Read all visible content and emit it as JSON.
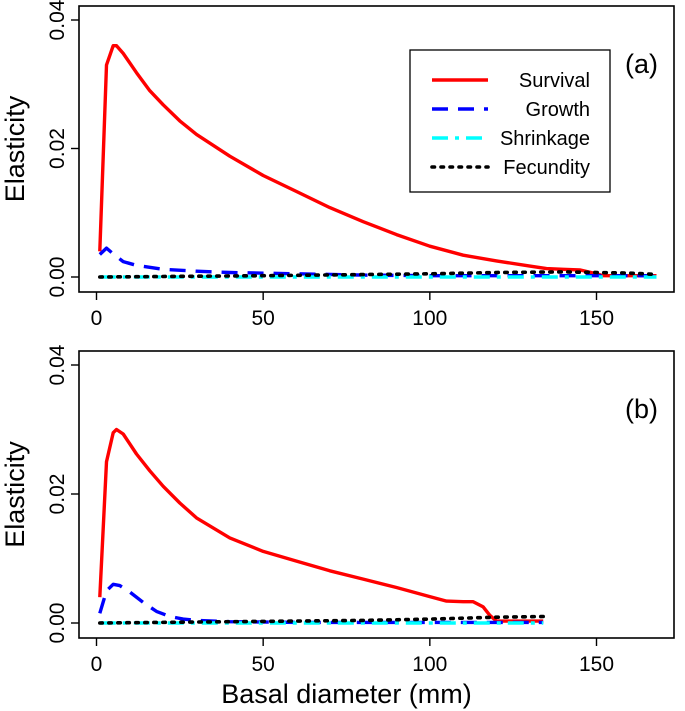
{
  "chart_data": [
    {
      "type": "line",
      "panel_label": "(a)",
      "ylabel": "Elasticity",
      "xlabel": "",
      "xlim": [
        0,
        168
      ],
      "ylim": [
        0,
        0.04
      ],
      "x_ticks": [
        0,
        50,
        100,
        150
      ],
      "x_tick_labels": [
        "0",
        "50",
        "100",
        "150"
      ],
      "y_ticks": [
        0,
        0.02,
        0.04
      ],
      "y_tick_labels": [
        "0.00",
        "0.02",
        "0.04"
      ],
      "legend": {
        "position": "top-right",
        "entries": [
          "Survival",
          "Growth",
          "Shrinkage",
          "Fecundity"
        ]
      },
      "series": [
        {
          "name": "Survival",
          "color": "#ff0000",
          "style": "solid",
          "x": [
            1,
            3,
            5,
            6,
            8,
            12,
            16,
            20,
            25,
            30,
            40,
            50,
            60,
            70,
            80,
            90,
            100,
            110,
            120,
            130,
            135,
            140,
            145,
            150,
            152,
            168
          ],
          "values": [
            0.004,
            0.033,
            0.036,
            0.036,
            0.0348,
            0.0318,
            0.029,
            0.0268,
            0.0243,
            0.0222,
            0.0188,
            0.0158,
            0.0133,
            0.0108,
            0.0086,
            0.0066,
            0.0048,
            0.0034,
            0.0025,
            0.0017,
            0.0013,
            0.0012,
            0.0011,
            0.0005,
            0.0002,
            0.0002
          ]
        },
        {
          "name": "Growth",
          "color": "#0000ff",
          "style": "dashed",
          "x": [
            1,
            3,
            5,
            8,
            12,
            20,
            30,
            40,
            60,
            80,
            100,
            120,
            140,
            168
          ],
          "values": [
            0.0035,
            0.0045,
            0.0036,
            0.0024,
            0.0018,
            0.0012,
            0.0009,
            0.0007,
            0.0005,
            0.0003,
            0.0002,
            0.0002,
            0.0002,
            0.0002
          ]
        },
        {
          "name": "Shrinkage",
          "color": "#00ffff",
          "style": "dashdot",
          "x": [
            1,
            40,
            80,
            120,
            168
          ],
          "values": [
            0.0,
            0.0,
            0.0,
            0.0,
            0.0
          ]
        },
        {
          "name": "Fecundity",
          "color": "#000000",
          "style": "dotted",
          "x": [
            1,
            50,
            100,
            120,
            140,
            160,
            168
          ],
          "values": [
            0.0,
            0.0002,
            0.0005,
            0.0007,
            0.0008,
            0.0006,
            0.0004
          ]
        }
      ]
    },
    {
      "type": "line",
      "panel_label": "(b)",
      "ylabel": "Elasticity",
      "xlabel": "Basal diameter (mm)",
      "xlim": [
        0,
        168
      ],
      "ylim": [
        0,
        0.04
      ],
      "x_ticks": [
        0,
        50,
        100,
        150
      ],
      "x_tick_labels": [
        "0",
        "50",
        "100",
        "150"
      ],
      "y_ticks": [
        0,
        0.02,
        0.04
      ],
      "y_tick_labels": [
        "0.00",
        "0.02",
        "0.04"
      ],
      "series": [
        {
          "name": "Survival",
          "color": "#ff0000",
          "style": "solid",
          "x": [
            1,
            3,
            5,
            6,
            8,
            12,
            16,
            20,
            25,
            30,
            40,
            50,
            60,
            70,
            80,
            90,
            100,
            105,
            110,
            113,
            116,
            118,
            120,
            124,
            128,
            134
          ],
          "values": [
            0.004,
            0.025,
            0.0295,
            0.03,
            0.0293,
            0.0262,
            0.0236,
            0.0212,
            0.0186,
            0.0163,
            0.0132,
            0.0111,
            0.0096,
            0.0081,
            0.0068,
            0.0055,
            0.0041,
            0.0034,
            0.0033,
            0.0033,
            0.0025,
            0.0012,
            0.0003,
            0.0003,
            0.0003,
            0.0003
          ]
        },
        {
          "name": "Growth",
          "color": "#0000ff",
          "style": "dashed",
          "x": [
            1,
            3,
            5,
            7,
            10,
            14,
            18,
            22,
            26,
            30,
            40,
            60,
            80,
            100,
            134
          ],
          "values": [
            0.0015,
            0.005,
            0.006,
            0.0058,
            0.0048,
            0.0032,
            0.0018,
            0.001,
            0.0006,
            0.0004,
            0.0002,
            0.0001,
            0.0001,
            0.0001,
            0.0001
          ]
        },
        {
          "name": "Shrinkage",
          "color": "#00ffff",
          "style": "dashdot",
          "x": [
            1,
            40,
            80,
            110,
            134
          ],
          "values": [
            0.0,
            0.0,
            0.0,
            0.0,
            0.0
          ]
        },
        {
          "name": "Fecundity",
          "color": "#000000",
          "style": "dotted",
          "x": [
            1,
            40,
            80,
            100,
            120,
            134
          ],
          "values": [
            0.0,
            0.0002,
            0.0004,
            0.0006,
            0.0009,
            0.001
          ]
        }
      ]
    }
  ]
}
